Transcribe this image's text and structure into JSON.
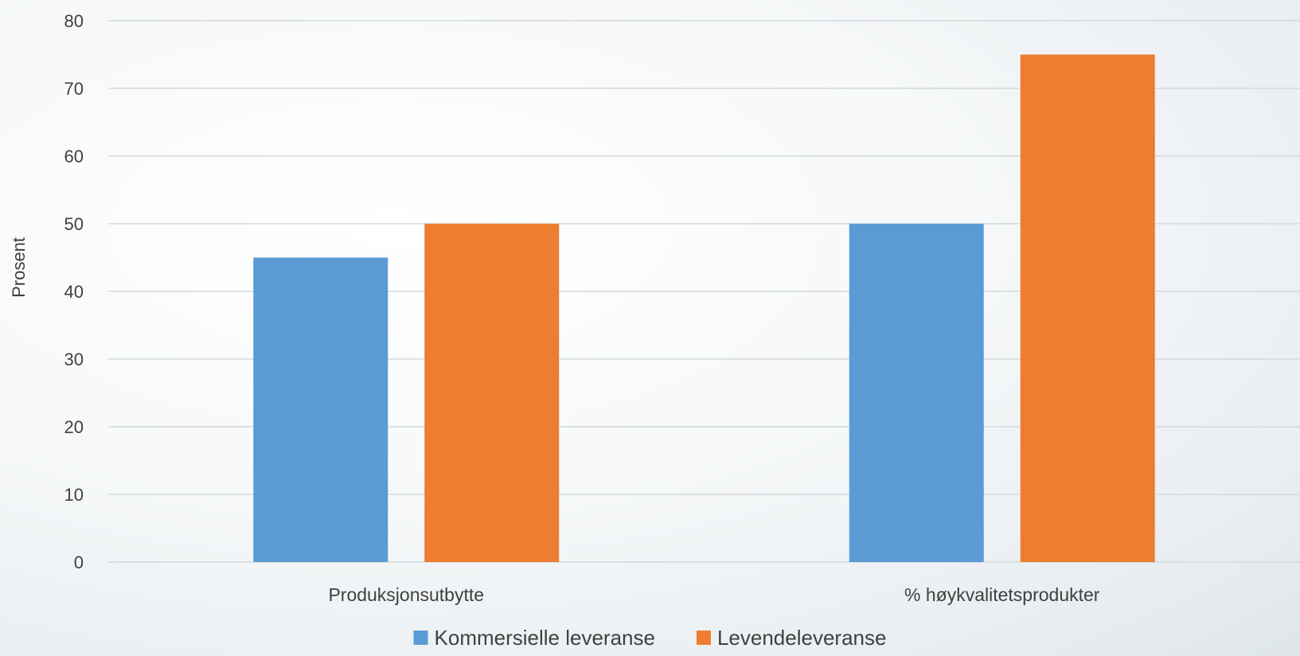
{
  "chart_data": {
    "type": "bar",
    "title": "",
    "xlabel": "",
    "ylabel": "Prosent",
    "ylim": [
      0,
      80
    ],
    "yticks": [
      0,
      10,
      20,
      30,
      40,
      50,
      60,
      70,
      80
    ],
    "grid": true,
    "legend_position": "bottom",
    "categories": [
      "Produksjonsutbytte",
      "% høykvalitetsprodukter"
    ],
    "series": [
      {
        "name": "Kommersielle leveranse",
        "color": "#5b9bd5",
        "values": [
          45,
          50
        ]
      },
      {
        "name": "Levendeleveranse",
        "color": "#ed7d31",
        "values": [
          50,
          75
        ]
      }
    ]
  }
}
